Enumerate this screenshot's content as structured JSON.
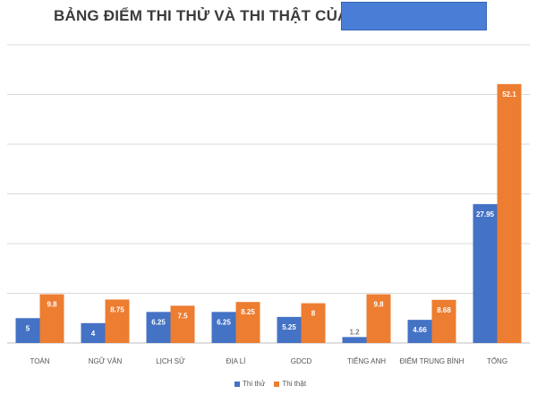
{
  "colors": {
    "series_0": "#4472c4",
    "series_1": "#ed7d31",
    "grid": "#d9d9d9",
    "title_cover": "#4a7ed6"
  },
  "chart_data": {
    "type": "bar",
    "title": "BẢNG ĐIỂM THI THỬ VÀ THI THẬT CỦA THÍ SINH",
    "categories": [
      "TOÁN",
      "NGỮ VĂN",
      "LỊCH SỬ",
      "ĐỊA LÍ",
      "GDCD",
      "TIẾNG ANH",
      "ĐIỂM TRUNG BÌNH",
      "TỔNG"
    ],
    "series": [
      {
        "name": "Thi thử",
        "values": [
          5,
          4,
          6.25,
          6.25,
          5.25,
          1.2,
          4.66,
          27.95
        ]
      },
      {
        "name": "Thi thật",
        "values": [
          9.8,
          8.75,
          7.5,
          8.25,
          8,
          9.8,
          8.68,
          52.1
        ]
      }
    ],
    "value_labels": [
      [
        "5",
        "4",
        "6.25",
        "6.25",
        "5.25",
        "1.2",
        "4.66",
        "27.95"
      ],
      [
        "9.8",
        "8.75",
        "7.5",
        "8.25",
        "8",
        "9.8",
        "8.68",
        "52.1"
      ]
    ],
    "xlabel": "",
    "ylabel": "",
    "ylim": [
      0,
      60
    ],
    "grid": true,
    "legend_position": "bottom"
  }
}
